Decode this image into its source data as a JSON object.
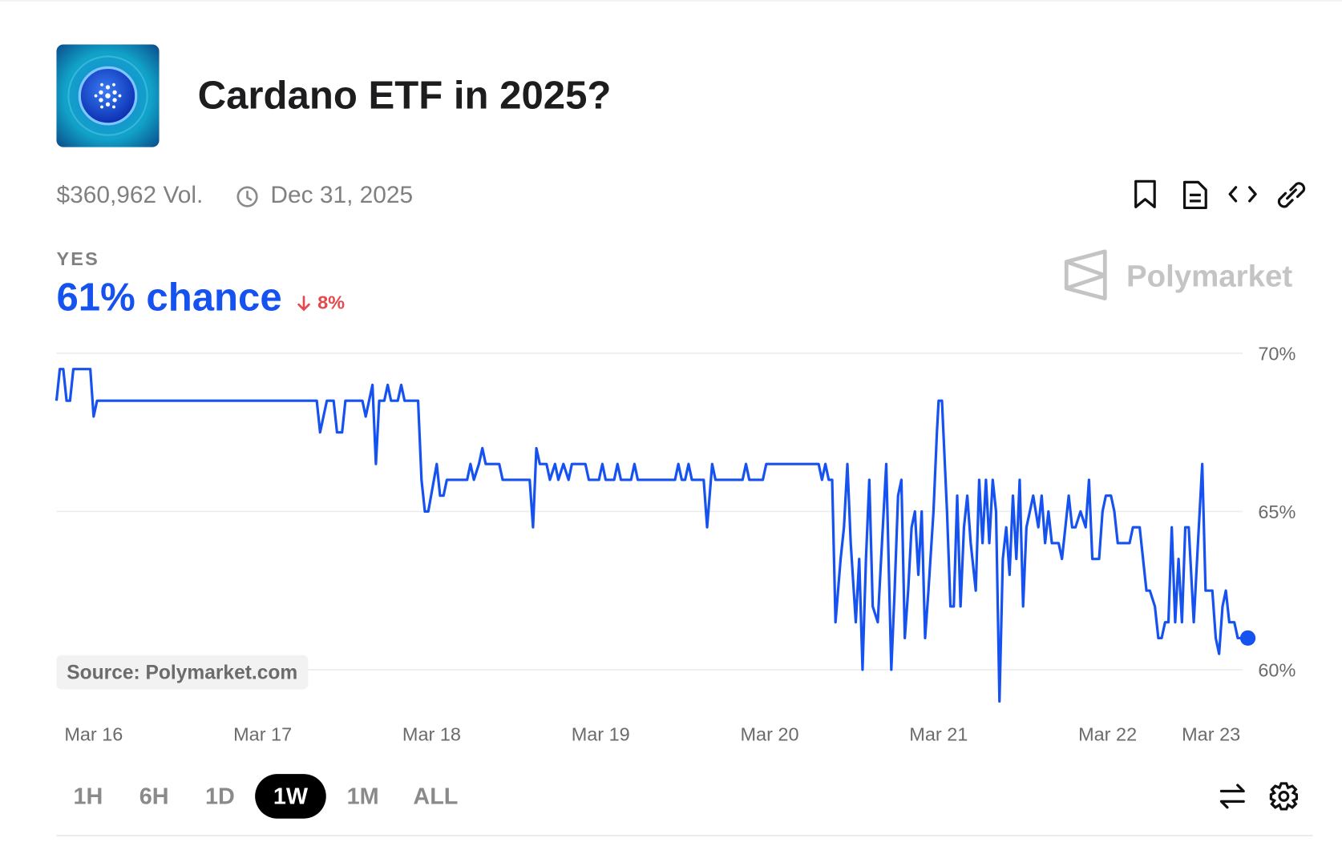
{
  "header": {
    "title": "Cardano ETF in 2025?",
    "volume": "$360,962 Vol.",
    "end_date": "Dec 31, 2025"
  },
  "outcome": {
    "label": "YES",
    "chance": "61% chance",
    "change": "8%"
  },
  "brand": "Polymarket",
  "source": "Source: Polymarket.com",
  "timeframes": [
    "1H",
    "6H",
    "1D",
    "1W",
    "1M",
    "ALL"
  ],
  "selected_timeframe": 3,
  "chart_data": {
    "type": "line",
    "color": "#1652f0",
    "x": [
      15.78,
      15.8,
      15.82,
      15.84,
      15.86,
      15.88,
      15.98,
      16.0,
      16.02,
      17.32,
      17.34,
      17.38,
      17.42,
      17.44,
      17.47,
      17.49,
      17.59,
      17.61,
      17.65,
      17.67,
      17.69,
      17.72,
      17.74,
      17.76,
      17.8,
      17.82,
      17.84,
      17.92,
      17.94,
      17.96,
      17.98,
      18.03,
      18.05,
      18.07,
      18.09,
      18.21,
      18.23,
      18.25,
      18.28,
      18.3,
      18.32,
      18.4,
      18.42,
      18.58,
      18.6,
      18.62,
      18.64,
      18.68,
      18.7,
      18.73,
      18.75,
      18.78,
      18.81,
      18.83,
      18.91,
      18.93,
      18.99,
      19.01,
      19.03,
      19.08,
      19.1,
      19.12,
      19.18,
      19.2,
      19.22,
      19.44,
      19.46,
      19.48,
      19.5,
      19.52,
      19.54,
      19.61,
      19.63,
      19.66,
      19.68,
      19.84,
      19.86,
      19.88,
      19.96,
      19.98,
      20.29,
      20.31,
      20.33,
      20.35,
      20.37,
      20.39,
      20.42,
      20.44,
      20.46,
      20.48,
      20.51,
      20.53,
      20.55,
      20.57,
      20.59,
      20.61,
      20.64,
      20.66,
      20.69,
      20.72,
      20.74,
      20.76,
      20.78,
      20.8,
      20.82,
      20.84,
      20.86,
      20.88,
      20.9,
      20.92,
      20.94,
      20.97,
      20.99,
      21.0,
      21.02,
      21.05,
      21.07,
      21.09,
      21.11,
      21.13,
      21.15,
      21.17,
      21.19,
      21.22,
      21.24,
      21.26,
      21.28,
      21.3,
      21.32,
      21.34,
      21.36,
      21.38,
      21.4,
      21.42,
      21.44,
      21.46,
      21.48,
      21.5,
      21.52,
      21.54,
      21.56,
      21.59,
      21.61,
      21.63,
      21.65,
      21.67,
      21.71,
      21.73,
      21.75,
      21.77,
      21.79,
      21.81,
      21.84,
      21.87,
      21.89,
      21.91,
      21.95,
      21.97,
      21.99,
      22.02,
      22.04,
      22.06,
      22.13,
      22.15,
      22.19,
      22.23,
      22.25,
      22.28,
      22.3,
      22.32,
      22.34,
      22.36,
      22.38,
      22.4,
      22.42,
      22.44,
      22.46,
      22.48,
      22.51,
      22.54,
      22.56,
      22.58,
      22.62,
      22.64,
      22.66,
      22.68,
      22.7,
      22.72,
      22.75,
      22.77,
      22.83
    ],
    "values": [
      68.5,
      69.5,
      69.5,
      68.5,
      68.5,
      69.5,
      69.5,
      68,
      68.5,
      68.5,
      67.5,
      68.5,
      68.5,
      67.5,
      67.5,
      68.5,
      68.5,
      68,
      69,
      66.5,
      68.5,
      68.5,
      69,
      68.5,
      68.5,
      69,
      68.5,
      68.5,
      66,
      65,
      65,
      66.5,
      65.5,
      65.5,
      66,
      66,
      66.5,
      66,
      66.5,
      67,
      66.5,
      66.5,
      66,
      66,
      64.5,
      67,
      66.5,
      66.5,
      66,
      66.5,
      66,
      66.5,
      66,
      66.5,
      66.5,
      66,
      66,
      66.5,
      66,
      66,
      66.5,
      66,
      66,
      66.5,
      66,
      66,
      66.5,
      66,
      66,
      66.5,
      66,
      66,
      64.5,
      66.5,
      66,
      66,
      66.5,
      66,
      66,
      66.5,
      66.5,
      66,
      66.5,
      66,
      66,
      61.5,
      63.5,
      64.5,
      66.5,
      64,
      61.5,
      63.5,
      60,
      63.5,
      66,
      62,
      61.5,
      63.5,
      66.5,
      60,
      62.5,
      65.5,
      66,
      61,
      62.5,
      64.5,
      65,
      63,
      65,
      61,
      62.5,
      65,
      67.5,
      68.5,
      68.5,
      65,
      62,
      62,
      65.5,
      62,
      64.5,
      65.5,
      64,
      62.5,
      66,
      64,
      66,
      64,
      66,
      65,
      59,
      63.5,
      64.5,
      63,
      65.5,
      63.5,
      66,
      62,
      64.5,
      65,
      65.5,
      64.5,
      65.5,
      64,
      65,
      64,
      64,
      63.5,
      64.5,
      65.5,
      64.5,
      64.5,
      65,
      64.5,
      66,
      63.5,
      63.5,
      65,
      65.5,
      65.5,
      65,
      64,
      64,
      64.5,
      64.5,
      62.5,
      62.5,
      62,
      61,
      61,
      61.5,
      61.5,
      64.5,
      61.5,
      63.5,
      61.5,
      64.5,
      64.5,
      61.5,
      64.5,
      66.5,
      62.5,
      62.5,
      61,
      60.5,
      62,
      62.5,
      61.5,
      61.5,
      61,
      61
    ],
    "xlim": [
      15.78,
      22.83
    ],
    "xticks": [
      {
        "value": 16,
        "label": "Mar 16"
      },
      {
        "value": 17,
        "label": "Mar 17"
      },
      {
        "value": 18,
        "label": "Mar 18"
      },
      {
        "value": 19,
        "label": "Mar 19"
      },
      {
        "value": 20,
        "label": "Mar 20"
      },
      {
        "value": 21,
        "label": "Mar 21"
      },
      {
        "value": 22,
        "label": "Mar 22"
      },
      {
        "value": 23,
        "label": "Mar 23"
      }
    ],
    "ylim": [
      59,
      70
    ],
    "yticks": [
      {
        "value": 60,
        "label": "60%"
      },
      {
        "value": 65,
        "label": "65%"
      },
      {
        "value": 70,
        "label": "70%"
      }
    ],
    "grid": true
  }
}
